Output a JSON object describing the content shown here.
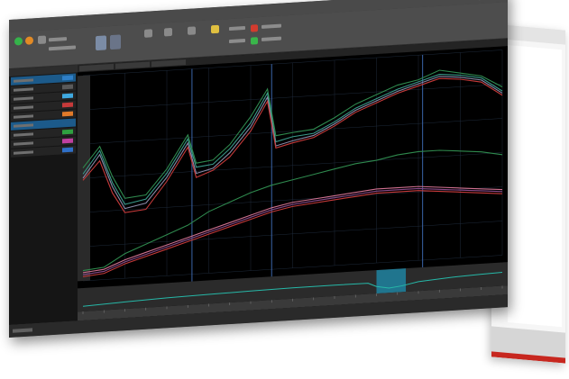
{
  "window": {
    "title": "",
    "status_text": ""
  },
  "colors": {
    "background": "#000000",
    "grid": "#1e2a3a",
    "cursor": "#3a64a8",
    "zoom_selection": "#1e8fb0",
    "overview_line": "#26b8a8",
    "series_colors": [
      "#2f8a4e",
      "#3a9a8a",
      "#8a8aa8",
      "#c63a3a",
      "#8a4a8a",
      "#d07090"
    ]
  },
  "ribbon": {
    "icons": [
      "play-icon",
      "stop-icon",
      "tool-icon",
      "view-icon",
      "layout-icon",
      "settings-icon",
      "export-icon",
      "lightbulb-icon"
    ]
  },
  "left_panel": {
    "rows": [
      {
        "color": "#2f7fc7",
        "selected": true
      },
      {
        "color": "#5a5a5a",
        "selected": false
      },
      {
        "color": "#3fa9e0",
        "selected": false
      },
      {
        "color": "#c63a3a",
        "selected": false
      },
      {
        "color": "#e07a2a",
        "selected": false
      },
      {
        "color": "#1e5a8a",
        "selected": true
      },
      {
        "color": "#2fa040",
        "selected": false
      },
      {
        "color": "#c040a0",
        "selected": false
      },
      {
        "color": "#2f6fc7",
        "selected": false
      }
    ]
  },
  "chart_data": {
    "type": "line",
    "title": "",
    "xlabel": "",
    "ylabel": "",
    "xlim": [
      0,
      100
    ],
    "ylim": [
      0,
      100
    ],
    "grid": true,
    "cursors_x": [
      26,
      45,
      81
    ],
    "zoom_selection": [
      70,
      77
    ],
    "series": [
      {
        "color": "#2f8a4e",
        "x": [
          0,
          4,
          7,
          10,
          15,
          20,
          25,
          27,
          31,
          35,
          40,
          44,
          46,
          50,
          55,
          60,
          65,
          70,
          75,
          80,
          85,
          90,
          95,
          100
        ],
        "y": [
          55,
          65,
          50,
          39,
          40,
          52,
          68,
          54,
          55,
          62,
          75,
          88,
          65,
          66,
          67,
          72,
          78,
          82,
          86,
          88,
          92,
          90,
          88,
          82
        ]
      },
      {
        "color": "#3a9a8a",
        "x": [
          0,
          4,
          7,
          10,
          15,
          20,
          25,
          27,
          31,
          35,
          40,
          44,
          46,
          50,
          55,
          60,
          65,
          70,
          75,
          80,
          85,
          90,
          95,
          100
        ],
        "y": [
          52,
          63,
          47,
          36,
          38,
          50,
          66,
          52,
          53,
          60,
          72,
          86,
          62,
          64,
          65,
          70,
          76,
          80,
          84,
          87,
          90,
          89,
          87,
          80
        ]
      },
      {
        "color": "#8a8aa8",
        "x": [
          0,
          4,
          7,
          10,
          15,
          20,
          25,
          27,
          31,
          35,
          40,
          44,
          46,
          50,
          55,
          60,
          65,
          70,
          75,
          80,
          85,
          90,
          95,
          100
        ],
        "y": [
          50,
          61,
          45,
          34,
          36,
          48,
          64,
          49,
          51,
          58,
          70,
          84,
          60,
          62,
          64,
          69,
          75,
          79,
          83,
          86,
          89,
          88,
          86,
          79
        ]
      },
      {
        "color": "#c63a3a",
        "x": [
          0,
          4,
          7,
          10,
          15,
          20,
          25,
          27,
          31,
          35,
          40,
          44,
          46,
          50,
          55,
          60,
          65,
          70,
          75,
          80,
          85,
          90,
          95,
          100
        ],
        "y": [
          49,
          58,
          42,
          32,
          33,
          46,
          62,
          47,
          50,
          56,
          68,
          82,
          59,
          61,
          63,
          68,
          74,
          78,
          82,
          85,
          88,
          87,
          85,
          78
        ]
      },
      {
        "color": "#2f8a4e",
        "x": [
          0,
          5,
          10,
          15,
          20,
          25,
          30,
          35,
          40,
          45,
          50,
          55,
          60,
          65,
          70,
          75,
          80,
          85,
          90,
          95,
          100
        ],
        "y": [
          5,
          6,
          12,
          16,
          20,
          24,
          30,
          34,
          38,
          41,
          43,
          45,
          47,
          49,
          50,
          52,
          53,
          53,
          52,
          51,
          49
        ]
      },
      {
        "color": "#d07090",
        "x": [
          0,
          5,
          10,
          15,
          20,
          25,
          30,
          35,
          40,
          45,
          50,
          55,
          60,
          65,
          70,
          75,
          80,
          85,
          90,
          95,
          100
        ],
        "y": [
          4,
          5,
          9,
          12,
          15,
          18,
          21,
          24,
          27,
          30,
          32,
          33,
          34,
          35,
          36,
          36,
          36,
          35,
          34,
          33,
          32
        ]
      },
      {
        "color": "#8a4a8a",
        "x": [
          0,
          5,
          10,
          15,
          20,
          25,
          30,
          35,
          40,
          45,
          50,
          55,
          60,
          65,
          70,
          75,
          80,
          85,
          90,
          95,
          100
        ],
        "y": [
          3,
          4,
          8,
          11,
          14,
          17,
          20,
          23,
          26,
          29,
          31,
          32,
          33,
          34,
          35,
          35,
          35,
          34,
          33,
          32,
          31
        ]
      },
      {
        "color": "#c63a3a",
        "x": [
          0,
          5,
          10,
          15,
          20,
          25,
          30,
          35,
          40,
          45,
          50,
          55,
          60,
          65,
          70,
          75,
          80,
          85,
          90,
          95,
          100
        ],
        "y": [
          2,
          3,
          7,
          10,
          13,
          16,
          19,
          22,
          25,
          28,
          30,
          31,
          32,
          33,
          34,
          34,
          34,
          33,
          32,
          31,
          30
        ]
      }
    ],
    "overview": {
      "x": [
        0,
        10,
        20,
        30,
        40,
        50,
        60,
        68,
        70,
        73,
        76,
        80,
        88,
        95,
        100
      ],
      "y": [
        22,
        30,
        36,
        40,
        44,
        46,
        47,
        46,
        30,
        20,
        26,
        40,
        50,
        55,
        58
      ]
    }
  }
}
